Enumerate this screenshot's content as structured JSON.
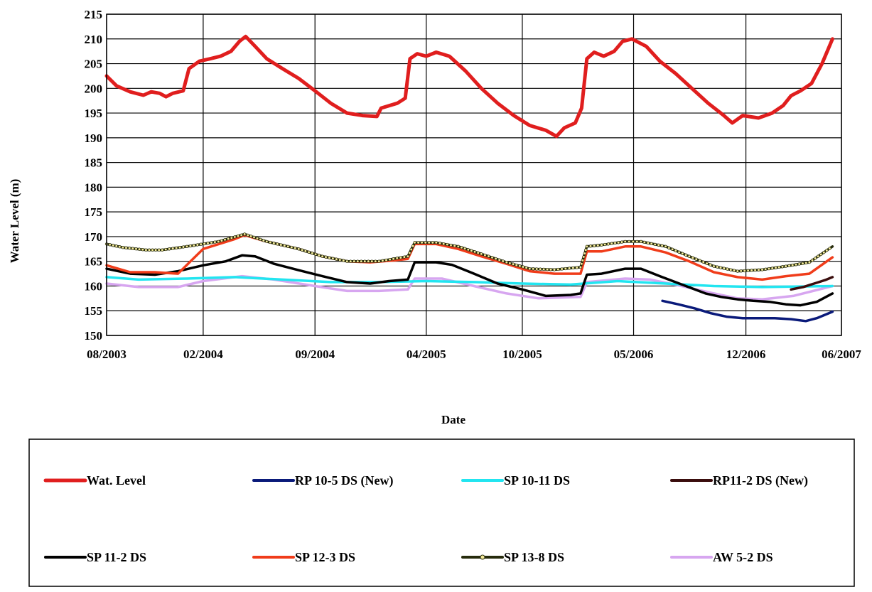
{
  "chart_data": {
    "type": "line",
    "title": "",
    "xlabel": "Date",
    "ylabel": "Water Level (m)",
    "ylim": [
      150,
      215
    ],
    "yticks": [
      "150",
      "155",
      "160",
      "165",
      "170",
      "175",
      "180",
      "185",
      "190",
      "195",
      "200",
      "205",
      "210",
      "215"
    ],
    "xlim": [
      "2003-08-01",
      "2007-06-01"
    ],
    "xticks": [
      {
        "date": "2003-08-01",
        "label": "08/2003"
      },
      {
        "date": "2004-02-01",
        "label": "02/2004"
      },
      {
        "date": "2004-09-01",
        "label": "09/2004"
      },
      {
        "date": "2005-04-01",
        "label": "04/2005"
      },
      {
        "date": "2005-10-01",
        "label": "10/2005"
      },
      {
        "date": "2006-05-01",
        "label": "05/2006"
      },
      {
        "date": "2006-12-01",
        "label": "12/2006"
      },
      {
        "date": "2007-06-01",
        "label": "06/2007"
      }
    ],
    "grid": true,
    "legend_position": "bottom",
    "series": [
      {
        "name": "Wat. Level",
        "color": "#e01e1e",
        "marker": "none",
        "points": [
          [
            "2003-08-01",
            202.5
          ],
          [
            "2003-08-20",
            200.5
          ],
          [
            "2003-09-15",
            199.3
          ],
          [
            "2003-10-10",
            198.6
          ],
          [
            "2003-10-25",
            199.3
          ],
          [
            "2003-11-10",
            199
          ],
          [
            "2003-11-22",
            198.3
          ],
          [
            "2003-12-05",
            199
          ],
          [
            "2003-12-25",
            199.5
          ],
          [
            "2004-01-05",
            204
          ],
          [
            "2004-01-25",
            205.5
          ],
          [
            "2004-02-15",
            206
          ],
          [
            "2004-03-05",
            206.5
          ],
          [
            "2004-03-25",
            207.5
          ],
          [
            "2004-04-10",
            209.5
          ],
          [
            "2004-04-22",
            210.5
          ],
          [
            "2004-05-10",
            208.5
          ],
          [
            "2004-06-01",
            206
          ],
          [
            "2004-07-01",
            204
          ],
          [
            "2004-08-01",
            202
          ],
          [
            "2004-09-01",
            199.5
          ],
          [
            "2004-10-01",
            197
          ],
          [
            "2004-11-01",
            195
          ],
          [
            "2004-12-01",
            194.5
          ],
          [
            "2004-12-28",
            194.3
          ],
          [
            "2005-01-05",
            196
          ],
          [
            "2005-02-05",
            197
          ],
          [
            "2005-02-20",
            198
          ],
          [
            "2005-03-01",
            206
          ],
          [
            "2005-03-15",
            207
          ],
          [
            "2005-04-01",
            206.5
          ],
          [
            "2005-04-20",
            207.3
          ],
          [
            "2005-05-15",
            206.5
          ],
          [
            "2005-06-15",
            203.5
          ],
          [
            "2005-07-15",
            200
          ],
          [
            "2005-08-15",
            197
          ],
          [
            "2005-09-15",
            194.5
          ],
          [
            "2005-10-15",
            192.5
          ],
          [
            "2005-11-15",
            191.5
          ],
          [
            "2005-12-05",
            190.3
          ],
          [
            "2005-12-20",
            192
          ],
          [
            "2006-01-10",
            193
          ],
          [
            "2006-01-22",
            196
          ],
          [
            "2006-02-01",
            206
          ],
          [
            "2006-02-15",
            207.3
          ],
          [
            "2006-03-05",
            206.5
          ],
          [
            "2006-03-25",
            207.5
          ],
          [
            "2006-04-10",
            209.5
          ],
          [
            "2006-04-28",
            210
          ],
          [
            "2006-05-25",
            208.5
          ],
          [
            "2006-06-20",
            205.5
          ],
          [
            "2006-07-20",
            203
          ],
          [
            "2006-08-20",
            200
          ],
          [
            "2006-09-20",
            197
          ],
          [
            "2006-10-20",
            194.5
          ],
          [
            "2006-11-05",
            193
          ],
          [
            "2006-11-25",
            194.5
          ],
          [
            "2006-12-25",
            194
          ],
          [
            "2007-01-20",
            195
          ],
          [
            "2007-02-10",
            196.5
          ],
          [
            "2007-02-25",
            198.5
          ],
          [
            "2007-03-15",
            199.5
          ],
          [
            "2007-04-05",
            201
          ],
          [
            "2007-04-25",
            205
          ],
          [
            "2007-05-15",
            210
          ]
        ]
      },
      {
        "name": "RP 10-5 DS (New)",
        "color": "#0a1a7a",
        "marker": "none",
        "points": [
          [
            "2006-06-25",
            157
          ],
          [
            "2006-07-25",
            156.3
          ],
          [
            "2006-08-25",
            155.5
          ],
          [
            "2006-09-25",
            154.5
          ],
          [
            "2006-10-25",
            153.8
          ],
          [
            "2006-11-25",
            153.5
          ],
          [
            "2006-12-25",
            153.5
          ],
          [
            "2007-01-25",
            153.5
          ],
          [
            "2007-02-25",
            153.3
          ],
          [
            "2007-03-25",
            152.9
          ],
          [
            "2007-04-15",
            153.5
          ],
          [
            "2007-05-15",
            154.8
          ]
        ]
      },
      {
        "name": "SP 10-11  DS",
        "color": "#22e5f0",
        "marker": "none",
        "points": [
          [
            "2003-08-01",
            161.8
          ],
          [
            "2003-10-01",
            161.3
          ],
          [
            "2004-01-01",
            161.5
          ],
          [
            "2004-04-01",
            161.8
          ],
          [
            "2004-07-01",
            161.3
          ],
          [
            "2004-10-01",
            160.8
          ],
          [
            "2005-01-01",
            160.8
          ],
          [
            "2005-04-01",
            161
          ],
          [
            "2005-07-01",
            160.8
          ],
          [
            "2005-10-01",
            160.5
          ],
          [
            "2006-01-01",
            160.3
          ],
          [
            "2006-04-01",
            161
          ],
          [
            "2006-07-01",
            160.5
          ],
          [
            "2006-10-01",
            160
          ],
          [
            "2007-01-01",
            159.8
          ],
          [
            "2007-05-15",
            160
          ]
        ]
      },
      {
        "name": "RP11-2 DS (New)",
        "color": "#3a0d0d",
        "marker": "none",
        "points": [
          [
            "2007-02-25",
            159.3
          ],
          [
            "2007-03-20",
            159.8
          ],
          [
            "2007-04-10",
            160.5
          ],
          [
            "2007-05-01",
            161.2
          ],
          [
            "2007-05-15",
            161.8
          ]
        ]
      },
      {
        "name": "SP 11-2  DS",
        "color": "#000000",
        "marker": "none",
        "points": [
          [
            "2003-08-01",
            163.5
          ],
          [
            "2003-09-15",
            162.5
          ],
          [
            "2003-11-01",
            162.3
          ],
          [
            "2003-12-15",
            163
          ],
          [
            "2004-02-01",
            164.2
          ],
          [
            "2004-03-15",
            165
          ],
          [
            "2004-04-15",
            166.2
          ],
          [
            "2004-05-10",
            166
          ],
          [
            "2004-06-15",
            164.5
          ],
          [
            "2004-08-01",
            163.2
          ],
          [
            "2004-09-15",
            162
          ],
          [
            "2004-11-01",
            160.8
          ],
          [
            "2004-12-15",
            160.5
          ],
          [
            "2005-01-20",
            161
          ],
          [
            "2005-02-25",
            161.3
          ],
          [
            "2005-03-10",
            164.8
          ],
          [
            "2005-04-20",
            164.8
          ],
          [
            "2005-05-20",
            164.3
          ],
          [
            "2005-07-01",
            162.5
          ],
          [
            "2005-08-15",
            160.5
          ],
          [
            "2005-10-01",
            159.3
          ],
          [
            "2005-11-15",
            158
          ],
          [
            "2006-01-01",
            158.2
          ],
          [
            "2006-01-20",
            158.5
          ],
          [
            "2006-02-01",
            162.3
          ],
          [
            "2006-03-01",
            162.5
          ],
          [
            "2006-04-15",
            163.5
          ],
          [
            "2006-05-15",
            163.5
          ],
          [
            "2006-06-20",
            162
          ],
          [
            "2006-08-01",
            160.3
          ],
          [
            "2006-09-15",
            158.5
          ],
          [
            "2006-10-15",
            157.8
          ],
          [
            "2006-11-15",
            157.3
          ],
          [
            "2006-12-15",
            157
          ],
          [
            "2007-01-15",
            156.8
          ],
          [
            "2007-02-15",
            156.3
          ],
          [
            "2007-03-15",
            156.1
          ],
          [
            "2007-04-15",
            156.8
          ],
          [
            "2007-05-15",
            158.5
          ]
        ]
      },
      {
        "name": "SP 12-3  DS",
        "color": "#f03c1a",
        "marker": "none",
        "points": [
          [
            "2003-08-01",
            164.2
          ],
          [
            "2003-09-15",
            162.8
          ],
          [
            "2003-11-01",
            162.8
          ],
          [
            "2003-12-15",
            162.5
          ],
          [
            "2004-02-01",
            167.5
          ],
          [
            "2004-04-01",
            169.5
          ],
          [
            "2004-04-20",
            170.3
          ],
          [
            "2004-06-01",
            169
          ],
          [
            "2004-08-01",
            167.5
          ],
          [
            "2004-09-15",
            166
          ],
          [
            "2004-11-01",
            165
          ],
          [
            "2004-12-15",
            164.8
          ],
          [
            "2005-02-01",
            165.2
          ],
          [
            "2005-02-25",
            165.5
          ],
          [
            "2005-03-10",
            168.5
          ],
          [
            "2005-04-20",
            168.5
          ],
          [
            "2005-06-01",
            167.5
          ],
          [
            "2005-07-15",
            166
          ],
          [
            "2005-09-01",
            164.5
          ],
          [
            "2005-10-15",
            163
          ],
          [
            "2005-12-01",
            162.5
          ],
          [
            "2006-01-20",
            162.5
          ],
          [
            "2006-02-01",
            167
          ],
          [
            "2006-03-01",
            167
          ],
          [
            "2006-04-15",
            168
          ],
          [
            "2006-05-15",
            168
          ],
          [
            "2006-07-01",
            166.8
          ],
          [
            "2006-08-15",
            165
          ],
          [
            "2006-10-01",
            162.8
          ],
          [
            "2006-11-15",
            161.8
          ],
          [
            "2007-01-01",
            161.3
          ],
          [
            "2007-02-15",
            162
          ],
          [
            "2007-04-01",
            162.5
          ],
          [
            "2007-05-15",
            165.8
          ]
        ]
      },
      {
        "name": "SP 13-8  DS",
        "color": "#262b0c",
        "marker": "circle",
        "points": [
          [
            "2003-08-01",
            168.5
          ],
          [
            "2003-09-01",
            167.8
          ],
          [
            "2003-10-15",
            167.3
          ],
          [
            "2003-11-15",
            167.3
          ],
          [
            "2004-01-01",
            168
          ],
          [
            "2004-03-01",
            169
          ],
          [
            "2004-04-20",
            170.5
          ],
          [
            "2004-06-01",
            169
          ],
          [
            "2004-08-01",
            167.5
          ],
          [
            "2004-09-15",
            166
          ],
          [
            "2004-11-01",
            165
          ],
          [
            "2005-01-01",
            165
          ],
          [
            "2005-02-25",
            166
          ],
          [
            "2005-03-10",
            168.8
          ],
          [
            "2005-04-20",
            168.8
          ],
          [
            "2005-06-01",
            168
          ],
          [
            "2005-07-15",
            166.5
          ],
          [
            "2005-09-01",
            164.8
          ],
          [
            "2005-10-15",
            163.5
          ],
          [
            "2005-12-01",
            163.3
          ],
          [
            "2006-01-20",
            163.8
          ],
          [
            "2006-02-01",
            168
          ],
          [
            "2006-03-01",
            168.3
          ],
          [
            "2006-04-15",
            169
          ],
          [
            "2006-05-15",
            169
          ],
          [
            "2006-07-01",
            168
          ],
          [
            "2006-08-15",
            166
          ],
          [
            "2006-10-01",
            164
          ],
          [
            "2006-11-15",
            163
          ],
          [
            "2007-01-01",
            163.3
          ],
          [
            "2007-02-15",
            164
          ],
          [
            "2007-04-01",
            164.8
          ],
          [
            "2007-05-15",
            168
          ]
        ]
      },
      {
        "name": "AW 5-2  DS",
        "color": "#d7a6f0",
        "marker": "none",
        "points": [
          [
            "2003-08-01",
            160.5
          ],
          [
            "2003-10-01",
            159.8
          ],
          [
            "2003-12-15",
            159.8
          ],
          [
            "2004-02-01",
            161
          ],
          [
            "2004-04-15",
            162
          ],
          [
            "2004-06-15",
            161.3
          ],
          [
            "2004-09-01",
            160
          ],
          [
            "2004-11-01",
            159
          ],
          [
            "2005-01-01",
            159
          ],
          [
            "2005-02-25",
            159.3
          ],
          [
            "2005-03-10",
            161.5
          ],
          [
            "2005-05-01",
            161.5
          ],
          [
            "2005-07-01",
            160
          ],
          [
            "2005-09-01",
            158.5
          ],
          [
            "2005-11-01",
            157.5
          ],
          [
            "2006-01-20",
            157.8
          ],
          [
            "2006-02-01",
            160.8
          ],
          [
            "2006-04-15",
            161.5
          ],
          [
            "2006-06-01",
            161.3
          ],
          [
            "2006-08-01",
            160
          ],
          [
            "2006-10-01",
            158.5
          ],
          [
            "2006-11-15",
            157.5
          ],
          [
            "2007-01-01",
            157.3
          ],
          [
            "2007-03-01",
            158
          ],
          [
            "2007-05-15",
            160
          ]
        ]
      }
    ]
  }
}
